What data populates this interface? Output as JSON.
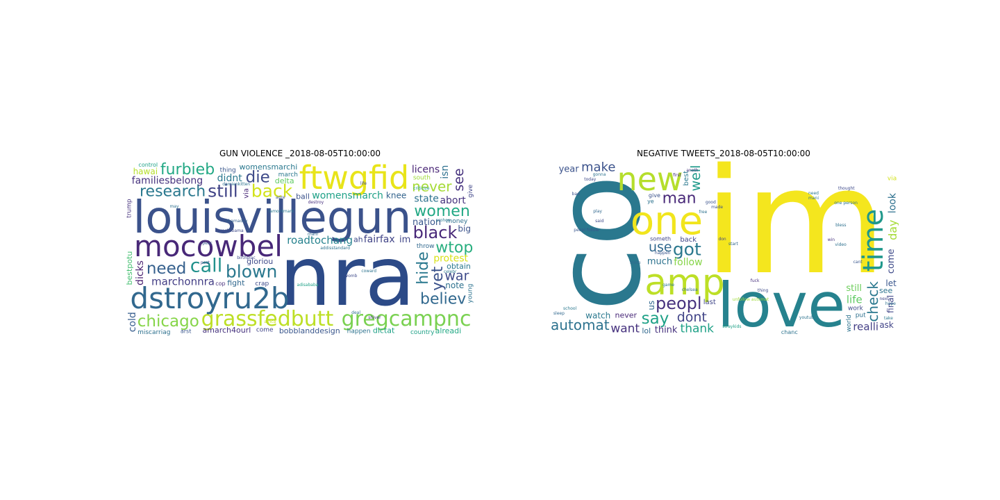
{
  "chart_data": [
    {
      "type": "wordcloud",
      "title": "GUN VIOLENCE _2018-08-05T10:00:00",
      "words": [
        {
          "text": "louisvillegun",
          "weight": 1.0,
          "color": "#3b528b"
        },
        {
          "text": "nra",
          "weight": 0.98,
          "color": "#2c4a87"
        },
        {
          "text": "mocowbel",
          "weight": 0.62,
          "color": "#482878"
        },
        {
          "text": "dstroyru2b",
          "weight": 0.62,
          "color": "#31688e"
        },
        {
          "text": "ftwgfid",
          "weight": 0.55,
          "color": "#e8e419"
        },
        {
          "text": "grassfedbutt",
          "weight": 0.42,
          "color": "#bddf26"
        },
        {
          "text": "gregcampnc",
          "weight": 0.42,
          "color": "#7ad151"
        },
        {
          "text": "furbieb",
          "weight": 0.33,
          "color": "#22a884"
        },
        {
          "text": "blown",
          "weight": 0.27,
          "color": "#2a788e"
        },
        {
          "text": "call",
          "weight": 0.3,
          "color": "#21918c"
        },
        {
          "text": "back",
          "weight": 0.27,
          "color": "#d2e21b"
        },
        {
          "text": "still",
          "weight": 0.27,
          "color": "#414487"
        },
        {
          "text": "black",
          "weight": 0.25,
          "color": "#482878"
        },
        {
          "text": "hide",
          "weight": 0.23,
          "color": "#2a788e"
        },
        {
          "text": "die",
          "weight": 0.24,
          "color": "#3e4a89"
        },
        {
          "text": "need",
          "weight": 0.24,
          "color": "#35608d"
        },
        {
          "text": "chicago",
          "weight": 0.24,
          "color": "#86d549"
        },
        {
          "text": "women",
          "weight": 0.22,
          "color": "#22a884"
        },
        {
          "text": "yet",
          "weight": 0.22,
          "color": "#3b528b"
        },
        {
          "text": "research",
          "weight": 0.22,
          "color": "#2a788e"
        },
        {
          "text": "believ",
          "weight": 0.22,
          "color": "#31688e"
        },
        {
          "text": "wtop",
          "weight": 0.22,
          "color": "#29af7f"
        },
        {
          "text": "never",
          "weight": 0.2,
          "color": "#a5db36"
        },
        {
          "text": "see",
          "weight": 0.18,
          "color": "#46327e"
        },
        {
          "text": "war",
          "weight": 0.18,
          "color": "#3e4a89"
        },
        {
          "text": "roadtochang",
          "weight": 0.12,
          "color": "#26828e"
        },
        {
          "text": "marchonnra",
          "weight": 0.12,
          "color": "#433e85"
        },
        {
          "text": "womensmarch",
          "weight": 0.1,
          "color": "#1fa187"
        },
        {
          "text": "barackobama",
          "weight": 0.1,
          "color": "#3e4a89"
        },
        {
          "text": "familiesbelong",
          "weight": 0.1,
          "color": "#46327e"
        },
        {
          "text": "bobblanddesign",
          "weight": 0.1,
          "color": "#39568c"
        },
        {
          "text": "womensmarchi",
          "weight": 0.09,
          "color": "#2a788e"
        },
        {
          "text": "amarch4ourl",
          "weight": 0.1,
          "color": "#46327e"
        },
        {
          "text": "bestpotu",
          "weight": 0.1,
          "color": "#44bf70"
        },
        {
          "text": "fairfax",
          "weight": 0.1,
          "color": "#414487"
        },
        {
          "text": "gloriou",
          "weight": 0.1,
          "color": "#3e4a89"
        },
        {
          "text": "licens",
          "weight": 0.1,
          "color": "#482475"
        },
        {
          "text": "protest",
          "weight": 0.1,
          "color": "#d8e219"
        },
        {
          "text": "dicks",
          "weight": 0.09,
          "color": "#481f70"
        },
        {
          "text": "delta",
          "weight": 0.09,
          "color": "#5ec962"
        },
        {
          "text": "didnt",
          "weight": 0.09,
          "color": "#2a788e"
        },
        {
          "text": "fight",
          "weight": 0.09,
          "color": "#31688e"
        },
        {
          "text": "post",
          "weight": 0.09,
          "color": "#3e4a89"
        },
        {
          "text": "cold",
          "weight": 0.09,
          "color": "#365c8d"
        },
        {
          "text": "ball",
          "weight": 0.09,
          "color": "#3b528b"
        },
        {
          "text": "state",
          "weight": 0.09,
          "color": "#2c728e"
        },
        {
          "text": "dictat",
          "weight": 0.09,
          "color": "#1fa187"
        },
        {
          "text": "alreadi",
          "weight": 0.09,
          "color": "#22a884"
        },
        {
          "text": "isn",
          "weight": 0.09,
          "color": "#2d708e"
        },
        {
          "text": "obtain",
          "weight": 0.09,
          "color": "#2a788e"
        },
        {
          "text": "abort",
          "weight": 0.09,
          "color": "#46327e"
        },
        {
          "text": "celebr",
          "weight": 0.08,
          "color": "#2a788e"
        },
        {
          "text": "nation",
          "weight": 0.08,
          "color": "#39568c"
        },
        {
          "text": "damienkitten",
          "weight": 0.08,
          "color": "#2c728e"
        },
        {
          "text": "obamaday",
          "weight": 0.08,
          "color": "#35608d"
        },
        {
          "text": "birthplac",
          "weight": 0.08,
          "color": "#3e4a89"
        },
        {
          "text": "miscarriag",
          "weight": 0.07,
          "color": "#2d708e"
        },
        {
          "text": "hawai",
          "weight": 0.07,
          "color": "#b5de2b"
        },
        {
          "text": "via",
          "weight": 0.08,
          "color": "#482878"
        },
        {
          "text": "im",
          "weight": 0.08,
          "color": "#404688"
        },
        {
          "text": "knee",
          "weight": 0.07,
          "color": "#33638d"
        },
        {
          "text": "shiver",
          "weight": 0.07,
          "color": "#46327e"
        },
        {
          "text": "big",
          "weight": 0.07,
          "color": "#3b528b"
        },
        {
          "text": "young",
          "weight": 0.07,
          "color": "#2c728e"
        },
        {
          "text": "crap",
          "weight": 0.07,
          "color": "#3e4a89"
        },
        {
          "text": "money",
          "weight": 0.06,
          "color": "#2d708e"
        },
        {
          "text": "march",
          "weight": 0.07,
          "color": "#2a788e"
        },
        {
          "text": "come",
          "weight": 0.07,
          "color": "#404688"
        },
        {
          "text": "trump",
          "weight": 0.06,
          "color": "#46327e"
        },
        {
          "text": "happen",
          "weight": 0.06,
          "color": "#2c728e"
        },
        {
          "text": "country",
          "weight": 0.06,
          "color": "#1fa187"
        },
        {
          "text": "destroy",
          "weight": 0.06,
          "color": "#472f7d"
        },
        {
          "text": "thing",
          "weight": 0.06,
          "color": "#39568c"
        },
        {
          "text": "womb",
          "weight": 0.06,
          "color": "#3e4a89"
        },
        {
          "text": "deal",
          "weight": 0.06,
          "color": "#2d708e"
        },
        {
          "text": "criticize",
          "weight": 0.06,
          "color": "#1f9a8a"
        },
        {
          "text": "throw",
          "weight": 0.06,
          "color": "#31688e"
        },
        {
          "text": "note",
          "weight": 0.06,
          "color": "#2d708e"
        },
        {
          "text": "give",
          "weight": 0.06,
          "color": "#404688"
        },
        {
          "text": "south",
          "weight": 0.06,
          "color": "#a0da39"
        },
        {
          "text": "lamontmark",
          "weight": 0.06,
          "color": "#2a788e"
        },
        {
          "text": "addisstandard",
          "weight": 0.06,
          "color": "#2c728e"
        },
        {
          "text": "adisababa",
          "weight": 0.06,
          "color": "#1fa187"
        },
        {
          "text": "africa",
          "weight": 0.06,
          "color": "#c8e020"
        },
        {
          "text": "agre",
          "weight": 0.05,
          "color": "#3b528b"
        },
        {
          "text": "mani",
          "weight": 0.05,
          "color": "#31688e"
        },
        {
          "text": "coward",
          "weight": 0.05,
          "color": "#2c728e"
        },
        {
          "text": "cop",
          "weight": 0.05,
          "color": "#472f7d"
        },
        {
          "text": "life",
          "weight": 0.05,
          "color": "#3e4a89"
        },
        {
          "text": "prohon",
          "weight": 0.05,
          "color": "#2a788e"
        },
        {
          "text": "arst",
          "weight": 0.05,
          "color": "#39568c"
        },
        {
          "text": "control",
          "weight": 0.05,
          "color": "#1fa187"
        },
        {
          "text": "ah",
          "weight": 0.05,
          "color": "#3e4a89"
        },
        {
          "text": "may",
          "weight": 0.05,
          "color": "#2d708e"
        },
        {
          "text": "peac",
          "weight": 0.05,
          "color": "#39568c"
        }
      ]
    },
    {
      "type": "wordcloud",
      "title": "NEGATIVE TWEETS_2018-08-05T10:00:00",
      "words": [
        {
          "text": "im",
          "weight": 1.0,
          "color": "#f4e61e"
        },
        {
          "text": "co",
          "weight": 0.98,
          "color": "#2a788e"
        },
        {
          "text": "love",
          "weight": 0.7,
          "color": "#26828e"
        },
        {
          "text": "one",
          "weight": 0.47,
          "color": "#f1e51d"
        },
        {
          "text": "new",
          "weight": 0.4,
          "color": "#b5de2b"
        },
        {
          "text": "amp",
          "weight": 0.4,
          "color": "#bddf26"
        },
        {
          "text": "time",
          "weight": 0.36,
          "color": "#1f988b"
        },
        {
          "text": "got",
          "weight": 0.28,
          "color": "#2a788e"
        },
        {
          "text": "peopl",
          "weight": 0.26,
          "color": "#46327e"
        },
        {
          "text": "say",
          "weight": 0.24,
          "color": "#1fa187"
        },
        {
          "text": "dont",
          "weight": 0.27,
          "color": "#414487"
        },
        {
          "text": "man",
          "weight": 0.22,
          "color": "#482878"
        },
        {
          "text": "want",
          "weight": 0.22,
          "color": "#46327e"
        },
        {
          "text": "check",
          "weight": 0.2,
          "color": "#2a788e"
        },
        {
          "text": "automat",
          "weight": 0.19,
          "color": "#2c728e"
        },
        {
          "text": "realli",
          "weight": 0.19,
          "color": "#433e85"
        },
        {
          "text": "follow",
          "weight": 0.16,
          "color": "#86d549"
        },
        {
          "text": "use",
          "weight": 0.18,
          "color": "#31688e"
        },
        {
          "text": "well",
          "weight": 0.17,
          "color": "#1f9a8a"
        },
        {
          "text": "make",
          "weight": 0.16,
          "color": "#3b528b"
        },
        {
          "text": "much",
          "weight": 0.15,
          "color": "#2c728e"
        },
        {
          "text": "thank",
          "weight": 0.15,
          "color": "#1fa187"
        },
        {
          "text": "still",
          "weight": 0.15,
          "color": "#6ccd5a"
        },
        {
          "text": "come",
          "weight": 0.14,
          "color": "#3e4a89"
        },
        {
          "text": "video",
          "weight": 0.14,
          "color": "#2d708e"
        },
        {
          "text": "think",
          "weight": 0.14,
          "color": "#46327e"
        },
        {
          "text": "take",
          "weight": 0.13,
          "color": "#2a788e"
        },
        {
          "text": "bad",
          "weight": 0.13,
          "color": "#3b528b"
        },
        {
          "text": "day",
          "weight": 0.13,
          "color": "#a5db36"
        },
        {
          "text": "life",
          "weight": 0.12,
          "color": "#5ec962"
        },
        {
          "text": "never",
          "weight": 0.11,
          "color": "#482878"
        },
        {
          "text": "see",
          "weight": 0.11,
          "color": "#2c728e"
        },
        {
          "text": "lol",
          "weight": 0.1,
          "color": "#31688e"
        },
        {
          "text": "look",
          "weight": 0.09,
          "color": "#2d708e"
        },
        {
          "text": "thing",
          "weight": 0.08,
          "color": "#3e4a89"
        },
        {
          "text": "back",
          "weight": 0.08,
          "color": "#404688"
        },
        {
          "text": "one person",
          "weight": 0.08,
          "color": "#2c728e"
        },
        {
          "text": "win",
          "weight": 0.08,
          "color": "#46327e"
        },
        {
          "text": "best",
          "weight": 0.08,
          "color": "#2a788e"
        },
        {
          "text": "sleep",
          "weight": 0.08,
          "color": "#31688e"
        },
        {
          "text": "year",
          "weight": 0.08,
          "color": "#3b528b"
        },
        {
          "text": "last",
          "weight": 0.08,
          "color": "#404688"
        },
        {
          "text": "morn",
          "weight": 0.08,
          "color": "#31688e"
        },
        {
          "text": "unfollow automat",
          "weight": 0.07,
          "color": "#9fda3a"
        },
        {
          "text": "first",
          "weight": 0.07,
          "color": "#46327e"
        },
        {
          "text": "free",
          "weight": 0.07,
          "color": "#2c728e"
        },
        {
          "text": "work",
          "weight": 0.07,
          "color": "#3e4a89"
        },
        {
          "text": "watch",
          "weight": 0.07,
          "color": "#2a788e"
        },
        {
          "text": "final",
          "weight": 0.07,
          "color": "#404688"
        },
        {
          "text": "mani",
          "weight": 0.06,
          "color": "#2d708e"
        },
        {
          "text": "via",
          "weight": 0.07,
          "color": "#d2e21b"
        },
        {
          "text": "let",
          "weight": 0.06,
          "color": "#39568c"
        },
        {
          "text": "school",
          "weight": 0.06,
          "color": "#2a788e"
        },
        {
          "text": "world",
          "weight": 0.06,
          "color": "#2c728e"
        },
        {
          "text": "said",
          "weight": 0.06,
          "color": "#3e4a89"
        },
        {
          "text": "ask",
          "weight": 0.06,
          "color": "#414487"
        },
        {
          "text": "put",
          "weight": 0.06,
          "color": "#2d708e"
        },
        {
          "text": "anoth",
          "weight": 0.06,
          "color": "#46327e"
        },
        {
          "text": "made",
          "weight": 0.06,
          "color": "#3b528b"
        },
        {
          "text": "start",
          "weight": 0.06,
          "color": "#31688e"
        },
        {
          "text": "fuck",
          "weight": 0.06,
          "color": "#472f7d"
        },
        {
          "text": "youtub",
          "weight": 0.06,
          "color": "#2c728e"
        },
        {
          "text": "need",
          "weight": 0.06,
          "color": "#2a788e"
        },
        {
          "text": "peopl follow",
          "weight": 0.05,
          "color": "#39568c"
        },
        {
          "text": "someth",
          "weight": 0.05,
          "color": "#404688"
        },
        {
          "text": "hope",
          "weight": 0.05,
          "color": "#2d708e"
        },
        {
          "text": "today",
          "weight": 0.05,
          "color": "#3e4a89"
        },
        {
          "text": "chanc",
          "weight": 0.05,
          "color": "#2c728e"
        },
        {
          "text": "happen",
          "weight": 0.05,
          "color": "#39568c"
        },
        {
          "text": "chelsea",
          "weight": 0.05,
          "color": "#31688e"
        },
        {
          "text": "straykids",
          "weight": 0.05,
          "color": "#1fa187"
        },
        {
          "text": "good",
          "weight": 0.05,
          "color": "#3b528b"
        },
        {
          "text": "don",
          "weight": 0.05,
          "color": "#404688"
        },
        {
          "text": "us",
          "weight": 0.06,
          "color": "#31688e"
        },
        {
          "text": "ye",
          "weight": 0.05,
          "color": "#2c728e"
        },
        {
          "text": "thought",
          "weight": 0.05,
          "color": "#3e4a89"
        },
        {
          "text": "bless",
          "weight": 0.05,
          "color": "#2d708e"
        },
        {
          "text": "cant",
          "weight": 0.05,
          "color": "#39568c"
        },
        {
          "text": "next",
          "weight": 0.05,
          "color": "#404688"
        },
        {
          "text": "gonna",
          "weight": 0.05,
          "color": "#2c728e"
        },
        {
          "text": "play",
          "weight": 0.05,
          "color": "#31688e"
        },
        {
          "text": "give",
          "weight": 0.05,
          "color": "#3b528b"
        },
        {
          "text": "game",
          "weight": 0.05,
          "color": "#2a788e"
        }
      ]
    }
  ]
}
